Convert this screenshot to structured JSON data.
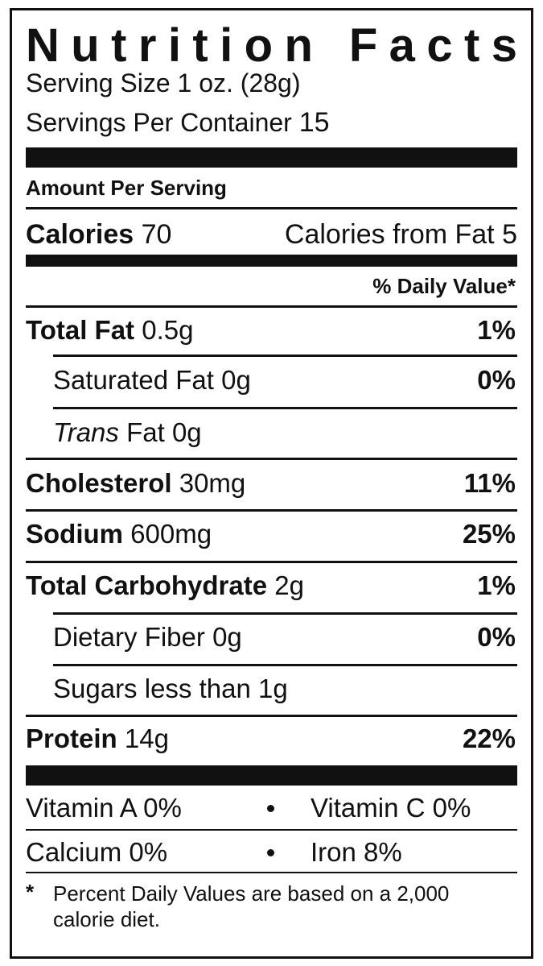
{
  "title": "Nutrition Facts",
  "serving_size": {
    "label": "Serving Size",
    "value": "1 oz. (28g)"
  },
  "servings_per_container": {
    "label": "Servings Per Container",
    "value": "15"
  },
  "amount_per_serving": "Amount Per Serving",
  "calories": {
    "label": "Calories",
    "value": "70",
    "fat_label": "Calories from Fat",
    "fat_value": "5"
  },
  "daily_value_header": "% Daily Value*",
  "nutrients": [
    {
      "label": "Total Fat",
      "amount": "0.5g",
      "dv": "1%",
      "bold": true,
      "indent": false
    },
    {
      "label": "Saturated Fat",
      "amount": "0g",
      "dv": "0%",
      "bold": false,
      "indent": true
    },
    {
      "label_italic": "Trans",
      "label": "Fat",
      "amount": "0g",
      "bold": false,
      "indent": true
    },
    {
      "label": "Cholesterol",
      "amount": "30mg",
      "dv": "11%",
      "bold": true,
      "indent": false
    },
    {
      "label": "Sodium",
      "amount": "600mg",
      "dv": "25%",
      "bold": true,
      "indent": false
    },
    {
      "label": "Total Carbohydrate",
      "amount": "2g",
      "dv": "1%",
      "bold": true,
      "indent": false
    },
    {
      "label": "Dietary Fiber",
      "amount": "0g",
      "dv": "0%",
      "bold": false,
      "indent": true
    },
    {
      "label": "Sugars",
      "amount": "less than 1g",
      "bold": false,
      "indent": true
    },
    {
      "label": "Protein",
      "amount": "14g",
      "dv": "22%",
      "bold": true,
      "indent": false
    }
  ],
  "vitamins": [
    [
      "Vitamin A 0%",
      "Vitamin C 0%"
    ],
    [
      "Calcium 0%",
      "Iron 8%"
    ]
  ],
  "footnote": {
    "mark": "*",
    "text": "Percent Daily Values are based on a 2,000 calorie diet."
  }
}
